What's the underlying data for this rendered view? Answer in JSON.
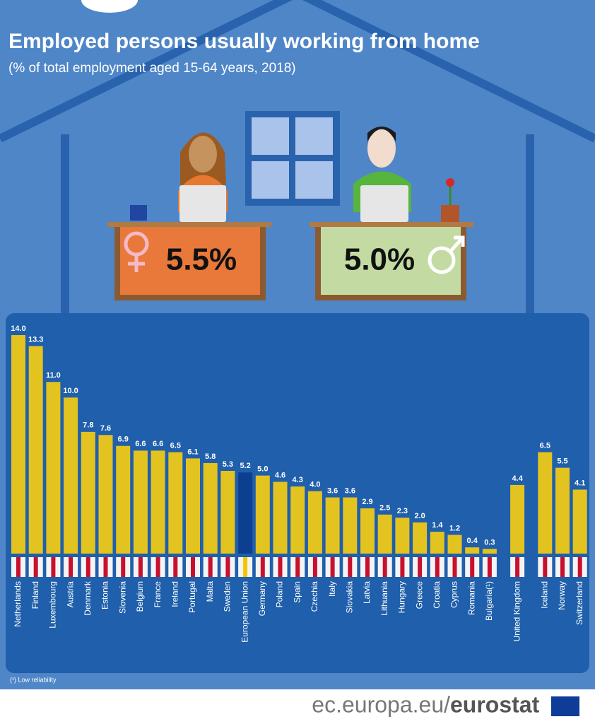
{
  "header": {
    "title": "Employed persons usually working from home",
    "subtitle": "(% of total employment aged 15-64 years, 2018)"
  },
  "gender": {
    "female": "5.5%",
    "male": "5.0%"
  },
  "chart_data": {
    "type": "bar",
    "categories": [
      "Netherlands",
      "Finland",
      "Luxembourg",
      "Austria",
      "Denmark",
      "Estonia",
      "Slovenia",
      "Belgium",
      "France",
      "Ireland",
      "Portugal",
      "Malta",
      "Sweden",
      "European Union",
      "Germany",
      "Poland",
      "Spain",
      "Czechia",
      "Italy",
      "Slovakia",
      "Latvia",
      "Lithuania",
      "Hungary",
      "Greece",
      "Croatia",
      "Cyprus",
      "Romania",
      "Bulgaria(¹)",
      null,
      "United Kingdom",
      null,
      "Iceland",
      "Norway",
      "Switzerland"
    ],
    "values": [
      14.0,
      13.3,
      11.0,
      10.0,
      7.8,
      7.6,
      6.9,
      6.6,
      6.6,
      6.5,
      6.1,
      5.8,
      5.3,
      5.2,
      5.0,
      4.6,
      4.3,
      4.0,
      3.6,
      3.6,
      2.9,
      2.5,
      2.3,
      2.0,
      1.4,
      1.2,
      0.4,
      0.3,
      null,
      4.4,
      null,
      6.5,
      5.5,
      4.1
    ],
    "value_labels": [
      "14.0",
      "13.3",
      "11.0",
      "10.0",
      "7.8",
      "7.6",
      "6.9",
      "6.6",
      "6.6",
      "6.5",
      "6.1",
      "5.8",
      "5.3",
      "5.2",
      "5.0",
      "4.6",
      "4.3",
      "4.0",
      "3.6",
      "3.6",
      "2.9",
      "2.5",
      "2.3",
      "2.0",
      "1.4",
      "1.2",
      "0.4",
      "0.3",
      null,
      "4.4",
      null,
      "6.5",
      "5.5",
      "4.1"
    ],
    "colors": [
      "#e3c31f",
      "#e3c31f",
      "#e3c31f",
      "#e3c31f",
      "#e3c31f",
      "#e3c31f",
      "#e3c31f",
      "#e3c31f",
      "#e3c31f",
      "#e3c31f",
      "#e3c31f",
      "#e3c31f",
      "#e3c31f",
      "#0d3f91",
      "#e3c31f",
      "#e3c31f",
      "#e3c31f",
      "#e3c31f",
      "#e3c31f",
      "#e3c31f",
      "#e3c31f",
      "#e3c31f",
      "#e3c31f",
      "#e3c31f",
      "#e3c31f",
      "#e3c31f",
      "#e3c31f",
      "#e3c31f",
      null,
      "#e3c31f",
      null,
      "#e3c31f",
      "#e3c31f",
      "#e3c31f"
    ],
    "footnote": "(¹) Low reliability"
  },
  "footer": {
    "domain": "ec.europa.eu/",
    "brand": "eurostat"
  }
}
